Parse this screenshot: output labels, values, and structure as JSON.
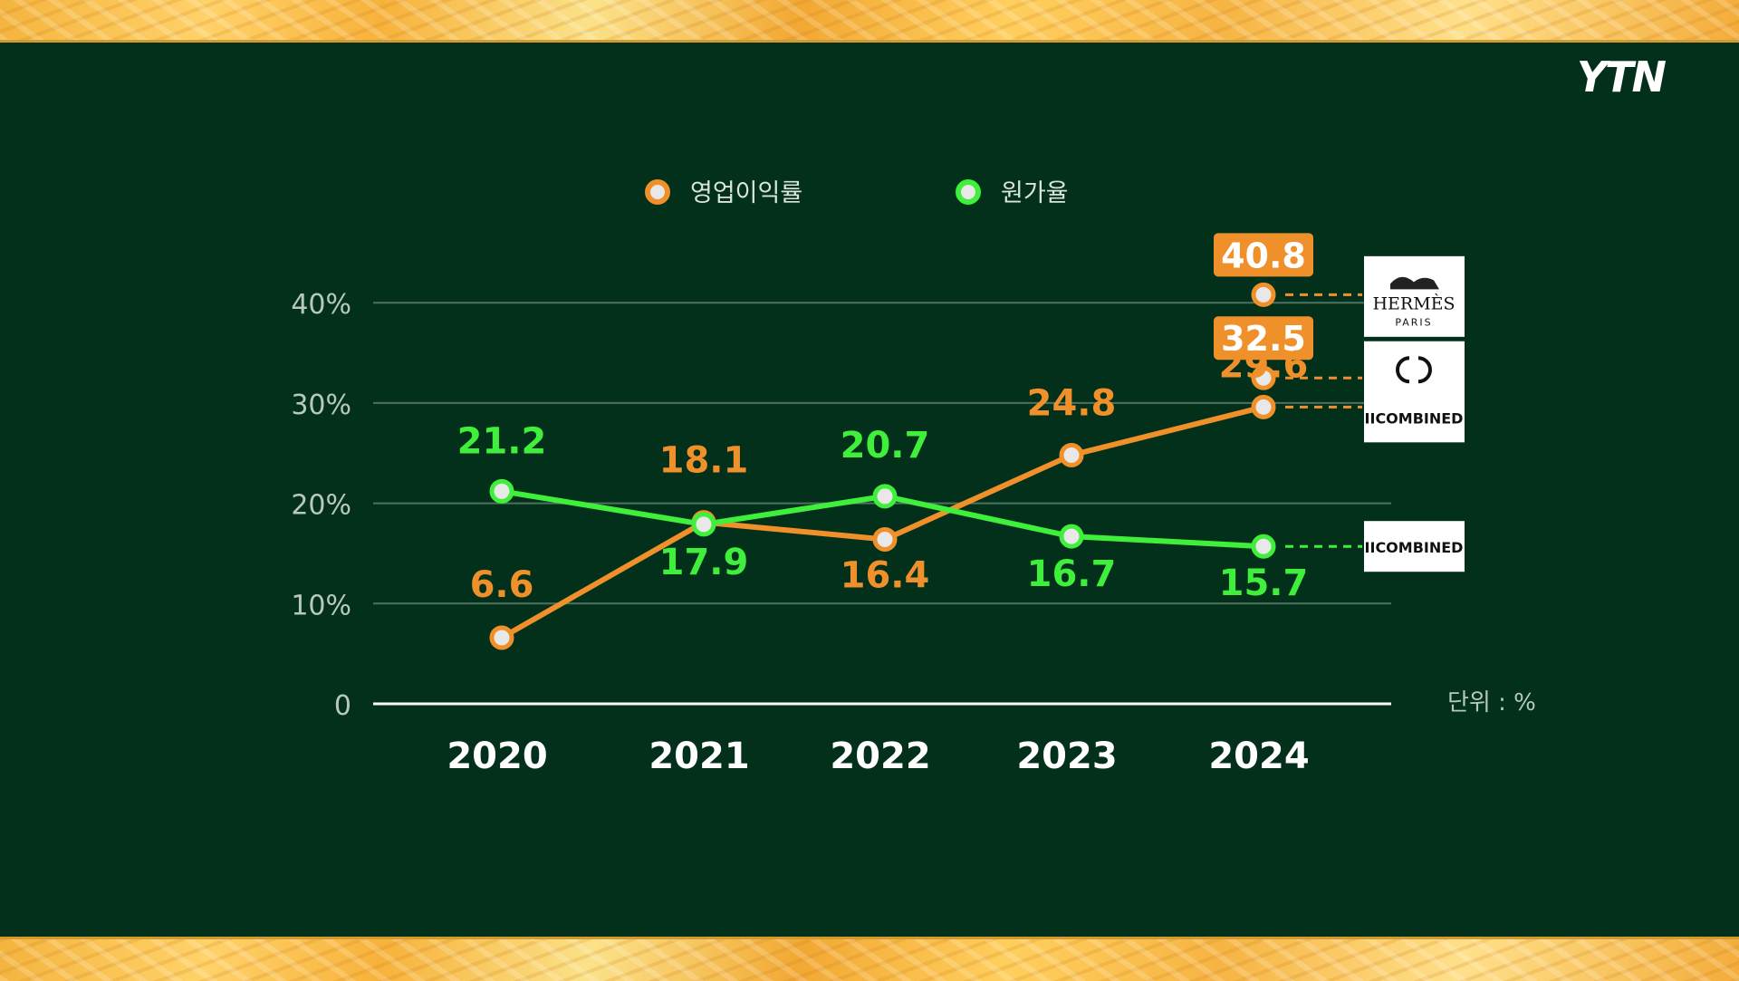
{
  "brand": "YTN",
  "colors": {
    "background": "#02301a",
    "orange": "#f0902a",
    "green": "#3fef3c",
    "grid": "#4f7060",
    "axis_text": "#b7c9bf",
    "gold": "#f6b43f"
  },
  "chart_data": {
    "type": "line",
    "x": [
      "2020",
      "2021",
      "2022",
      "2023",
      "2024"
    ],
    "series": [
      {
        "name": "영업이익률",
        "color": "#f0902a",
        "values": [
          6.6,
          18.1,
          16.4,
          24.8,
          29.6
        ]
      },
      {
        "name": "원가율",
        "color": "#3fef3c",
        "values": [
          21.2,
          17.9,
          20.7,
          16.7,
          15.7
        ]
      }
    ],
    "highlights": [
      {
        "label": "40.8",
        "value": 40.8,
        "x": "2024",
        "color": "#f0902a",
        "brand": "HERMÈS PARIS"
      },
      {
        "label": "32.5",
        "value": 32.5,
        "x": "2024",
        "color": "#f0902a",
        "brand": "CHANEL"
      }
    ],
    "end_brands": {
      "orange": "IICOMBINED",
      "green": "IICOMBINED"
    },
    "y_ticks": [
      "0",
      "10%",
      "20%",
      "30%",
      "40%"
    ],
    "y_tick_values": [
      0,
      10,
      20,
      30,
      40
    ],
    "ylim": [
      0,
      44
    ],
    "unit_note": "단위 : %",
    "legend_position": "top-center",
    "grid": true
  }
}
